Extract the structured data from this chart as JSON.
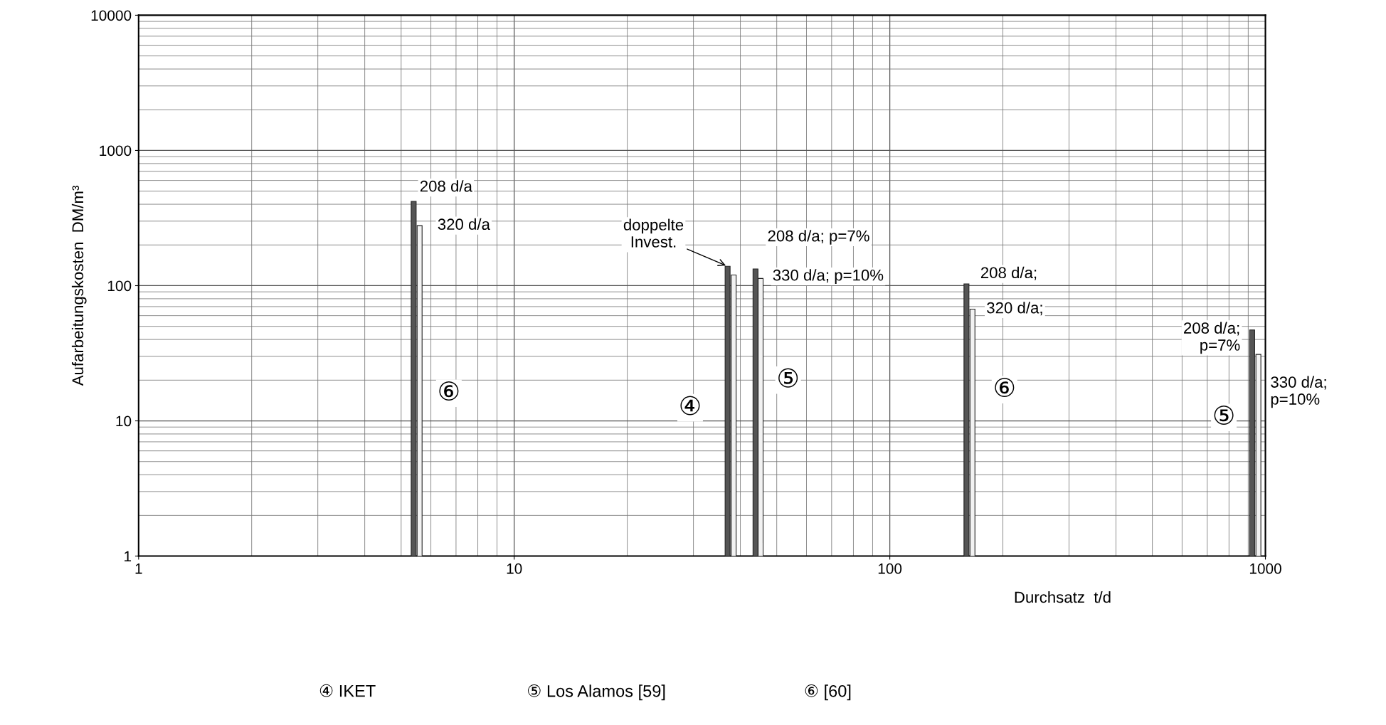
{
  "chart_data": {
    "type": "bar",
    "log": "xy",
    "grid": true,
    "xlabel": "Durchsatz  t/d",
    "ylabel": "Aufarbeitungskosten  DM/m³",
    "xlim": [
      1,
      1000
    ],
    "xticks": [
      1,
      10,
      100,
      1000
    ],
    "ylim": [
      1,
      10000
    ],
    "yticks": [
      1,
      10,
      100,
      1000,
      10000
    ],
    "series": [
      {
        "color": "#555555",
        "x": [
          5.4,
          37,
          43.9,
          160,
          922
        ],
        "values": [
          420,
          139,
          133,
          103,
          47
        ]
      },
      {
        "color": "#f2f2f2",
        "x": [
          5.6,
          38.4,
          45.3,
          166,
          958
        ],
        "values": [
          278,
          120,
          113,
          67,
          31
        ]
      }
    ],
    "annotations": [
      {
        "text": "208 d/a",
        "x": 5.4,
        "y": 420
      },
      {
        "text": "320 d/a",
        "x": 5.6,
        "y": 278
      },
      {
        "text": "doppelte\nInvest.",
        "x": 37,
        "y": 139
      },
      {
        "text": "208 d/a; p=7%",
        "x": 43.9,
        "y": 133
      },
      {
        "text": "330 d/a; p=10%",
        "x": 45.3,
        "y": 113
      },
      {
        "text": "208 d/a;",
        "x": 160,
        "y": 103
      },
      {
        "text": "320 d/a;",
        "x": 166,
        "y": 67
      },
      {
        "text": "208 d/a;\np=7%",
        "x": 922,
        "y": 47
      },
      {
        "text": "330 d/a;\np=10%",
        "x": 958,
        "y": 31
      },
      {
        "text": "⑥",
        "x": 6.7,
        "y": 16
      },
      {
        "text": "④",
        "x": 29.4,
        "y": 12.5
      },
      {
        "text": "⑤",
        "x": 53.6,
        "y": 20
      },
      {
        "text": "⑥",
        "x": 202,
        "y": 17
      },
      {
        "text": "⑤",
        "x": 775,
        "y": 10.6
      },
      "④ IKET",
      "⑤ Los Alamos [59]",
      "⑥ [60]"
    ]
  }
}
